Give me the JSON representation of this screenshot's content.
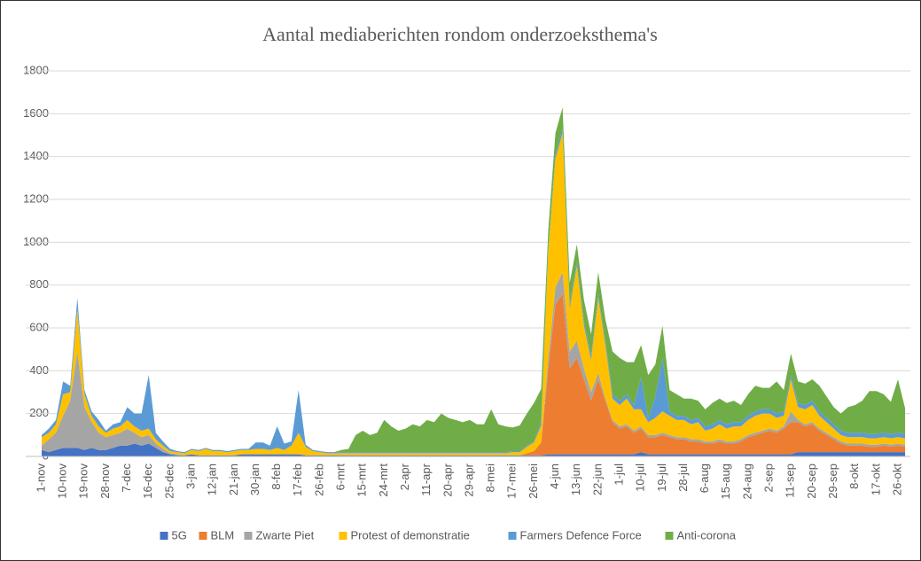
{
  "chart_data": {
    "type": "stacked_area",
    "title": "Aantal mediaberichten rondom onderzoeksthema's",
    "categories": [
      "1-nov",
      null,
      null,
      "10-nov",
      null,
      null,
      "19-nov",
      null,
      null,
      "28-nov",
      null,
      null,
      "7-dec",
      null,
      null,
      "16-dec",
      null,
      null,
      "25-dec",
      null,
      null,
      "3-jan",
      null,
      null,
      "12-jan",
      null,
      null,
      "21-jan",
      null,
      null,
      "30-jan",
      null,
      null,
      "8-feb",
      null,
      null,
      "17-feb",
      null,
      null,
      "26-feb",
      null,
      null,
      "6-mrt",
      null,
      null,
      "15-mrt",
      null,
      null,
      "24-mrt",
      null,
      null,
      "2-apr",
      null,
      null,
      "11-apr",
      null,
      null,
      "20-apr",
      null,
      null,
      "29-apr",
      null,
      null,
      "8-mei",
      null,
      null,
      "17-mei",
      null,
      null,
      "26-mei",
      null,
      null,
      "4-jun",
      null,
      null,
      "13-jun",
      null,
      null,
      "22-jun",
      null,
      null,
      "1-jul",
      null,
      null,
      "10-jul",
      null,
      null,
      "19-jul",
      null,
      null,
      "28-jul",
      null,
      null,
      "6-aug",
      null,
      null,
      "15-aug",
      null,
      null,
      "24-aug",
      null,
      null,
      "2-sep",
      null,
      null,
      "11-sep",
      null,
      null,
      "20-sep",
      null,
      null,
      "29-sep",
      null,
      null,
      "8-okt",
      null,
      null,
      "17-okt",
      null,
      null,
      "26-okt",
      null
    ],
    "series": [
      {
        "name": "5G",
        "color": "#4472c4",
        "values": [
          30,
          20,
          30,
          40,
          40,
          40,
          30,
          40,
          30,
          30,
          40,
          50,
          50,
          60,
          50,
          60,
          40,
          20,
          10,
          5,
          5,
          10,
          5,
          5,
          5,
          5,
          5,
          5,
          10,
          10,
          10,
          10,
          10,
          10,
          10,
          10,
          10,
          5,
          5,
          5,
          5,
          5,
          5,
          5,
          5,
          5,
          5,
          5,
          5,
          5,
          5,
          5,
          5,
          5,
          5,
          5,
          5,
          5,
          5,
          5,
          5,
          5,
          5,
          5,
          5,
          5,
          5,
          5,
          5,
          5,
          5,
          10,
          10,
          10,
          10,
          10,
          10,
          10,
          10,
          10,
          10,
          10,
          10,
          10,
          20,
          10,
          10,
          10,
          10,
          10,
          10,
          10,
          10,
          10,
          10,
          10,
          10,
          10,
          10,
          10,
          10,
          10,
          10,
          10,
          10,
          10,
          20,
          20,
          20,
          20,
          20,
          20,
          20,
          20,
          20,
          20,
          20,
          20,
          20,
          20,
          20,
          20
        ]
      },
      {
        "name": "BLM",
        "color": "#ed7d31",
        "values": [
          0,
          0,
          0,
          0,
          0,
          0,
          0,
          0,
          0,
          0,
          0,
          0,
          0,
          0,
          0,
          0,
          0,
          0,
          0,
          0,
          0,
          0,
          0,
          0,
          0,
          0,
          0,
          0,
          0,
          0,
          0,
          0,
          0,
          0,
          0,
          0,
          0,
          0,
          0,
          0,
          0,
          0,
          0,
          0,
          0,
          0,
          0,
          0,
          0,
          0,
          0,
          0,
          0,
          0,
          0,
          0,
          0,
          0,
          0,
          0,
          0,
          0,
          0,
          0,
          0,
          0,
          0,
          0,
          10,
          20,
          60,
          400,
          700,
          750,
          400,
          450,
          350,
          250,
          350,
          250,
          150,
          120,
          130,
          100,
          110,
          80,
          80,
          90,
          80,
          70,
          70,
          60,
          60,
          50,
          50,
          60,
          50,
          50,
          60,
          80,
          90,
          100,
          110,
          100,
          120,
          150,
          140,
          120,
          130,
          100,
          80,
          60,
          40,
          30,
          30,
          30,
          25,
          25,
          30,
          25,
          30,
          25
        ]
      },
      {
        "name": "Zwarte Piet",
        "color": "#a5a5a5",
        "values": [
          20,
          60,
          80,
          150,
          220,
          450,
          200,
          120,
          80,
          60,
          60,
          60,
          80,
          50,
          40,
          40,
          20,
          15,
          5,
          5,
          0,
          0,
          0,
          0,
          0,
          0,
          0,
          0,
          0,
          0,
          0,
          0,
          0,
          0,
          0,
          0,
          0,
          0,
          0,
          0,
          0,
          0,
          0,
          0,
          0,
          0,
          0,
          0,
          0,
          0,
          0,
          0,
          0,
          0,
          0,
          0,
          0,
          0,
          0,
          0,
          0,
          0,
          0,
          0,
          0,
          0,
          0,
          0,
          0,
          0,
          0,
          50,
          80,
          100,
          80,
          80,
          50,
          40,
          30,
          10,
          10,
          10,
          10,
          10,
          10,
          10,
          10,
          10,
          10,
          10,
          10,
          10,
          10,
          10,
          10,
          10,
          10,
          10,
          10,
          10,
          10,
          10,
          10,
          10,
          10,
          50,
          10,
          10,
          10,
          10,
          10,
          10,
          10,
          10,
          10,
          10,
          10,
          10,
          10,
          10,
          10,
          10
        ]
      },
      {
        "name": "Protest of demonstratie",
        "color": "#ffc000",
        "values": [
          40,
          30,
          40,
          100,
          40,
          200,
          60,
          30,
          30,
          20,
          30,
          30,
          40,
          30,
          30,
          30,
          20,
          15,
          10,
          10,
          10,
          20,
          20,
          30,
          20,
          20,
          15,
          20,
          20,
          20,
          25,
          25,
          20,
          30,
          20,
          40,
          100,
          40,
          20,
          15,
          10,
          10,
          10,
          10,
          10,
          10,
          10,
          10,
          10,
          10,
          10,
          10,
          10,
          10,
          10,
          10,
          10,
          10,
          10,
          10,
          10,
          10,
          10,
          10,
          10,
          10,
          15,
          15,
          30,
          40,
          80,
          500,
          600,
          650,
          200,
          350,
          200,
          150,
          350,
          250,
          100,
          100,
          120,
          100,
          80,
          60,
          80,
          100,
          90,
          80,
          80,
          70,
          80,
          50,
          60,
          70,
          60,
          70,
          60,
          70,
          80,
          80,
          70,
          60,
          50,
          150,
          60,
          70,
          80,
          60,
          50,
          40,
          30,
          30,
          30,
          30,
          30,
          30,
          30,
          30,
          30,
          30
        ]
      },
      {
        "name": "Farmers Defence Force",
        "color": "#5b9bd5",
        "values": [
          10,
          20,
          20,
          60,
          30,
          50,
          20,
          20,
          30,
          10,
          20,
          20,
          60,
          60,
          80,
          250,
          30,
          20,
          10,
          5,
          5,
          5,
          5,
          5,
          5,
          5,
          5,
          5,
          5,
          5,
          30,
          30,
          20,
          100,
          30,
          20,
          200,
          10,
          5,
          5,
          5,
          5,
          5,
          5,
          5,
          5,
          5,
          5,
          5,
          5,
          5,
          5,
          5,
          5,
          5,
          5,
          5,
          5,
          5,
          5,
          5,
          5,
          5,
          5,
          5,
          5,
          5,
          5,
          5,
          5,
          20,
          20,
          20,
          20,
          20,
          20,
          20,
          20,
          20,
          20,
          20,
          20,
          20,
          20,
          150,
          20,
          100,
          250,
          20,
          20,
          20,
          20,
          20,
          20,
          20,
          20,
          20,
          20,
          20,
          20,
          20,
          20,
          20,
          20,
          20,
          20,
          20,
          20,
          20,
          20,
          20,
          20,
          20,
          20,
          20,
          20,
          20,
          20,
          20,
          20,
          20,
          20
        ]
      },
      {
        "name": "Anti-corona",
        "color": "#70ad47",
        "values": [
          0,
          0,
          0,
          0,
          0,
          0,
          0,
          0,
          0,
          0,
          0,
          0,
          0,
          0,
          0,
          0,
          0,
          0,
          0,
          0,
          0,
          0,
          0,
          0,
          0,
          0,
          0,
          0,
          0,
          0,
          0,
          0,
          0,
          0,
          0,
          0,
          0,
          0,
          0,
          0,
          0,
          0,
          10,
          15,
          80,
          100,
          80,
          90,
          150,
          120,
          100,
          110,
          130,
          120,
          150,
          140,
          180,
          160,
          150,
          140,
          150,
          130,
          130,
          200,
          130,
          120,
          110,
          120,
          150,
          180,
          150,
          80,
          100,
          100,
          100,
          80,
          100,
          100,
          100,
          100,
          200,
          200,
          150,
          200,
          150,
          200,
          150,
          150,
          100,
          100,
          80,
          100,
          80,
          80,
          100,
          100,
          100,
          100,
          80,
          100,
          120,
          100,
          100,
          150,
          100,
          100,
          100,
          100,
          100,
          120,
          100,
          80,
          80,
          120,
          130,
          150,
          200,
          200,
          180,
          150,
          250,
          120
        ]
      }
    ],
    "ylim": [
      0,
      1800
    ],
    "yticks": [
      0,
      200,
      400,
      600,
      800,
      1000,
      1200,
      1400,
      1600,
      1800
    ],
    "grid": true,
    "legend": "bottom"
  }
}
